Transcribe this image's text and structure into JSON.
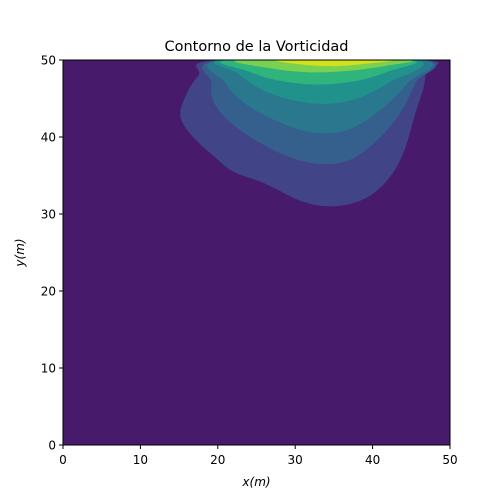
{
  "chart_data": {
    "type": "contour",
    "title": "Contorno de la Vorticidad",
    "xlabel": "x(m)",
    "ylabel": "y(m)",
    "xlim": [
      0,
      50
    ],
    "ylim": [
      0,
      50
    ],
    "xticks": [
      "0",
      "10",
      "20",
      "30",
      "40",
      "50"
    ],
    "yticks": [
      "0",
      "10",
      "20",
      "30",
      "40",
      "50"
    ],
    "grid": false,
    "legend": "none",
    "background_level_color": "#481a6c",
    "levels": [
      {
        "level": 1,
        "color": "#414487",
        "polygon": [
          [
            20,
            50
          ],
          [
            17.5,
            48
          ],
          [
            15.7,
            45
          ],
          [
            15.2,
            42.5
          ],
          [
            16.8,
            40
          ],
          [
            19.5,
            37.5
          ],
          [
            22,
            35.5
          ],
          [
            26,
            34
          ],
          [
            31,
            31.6
          ],
          [
            35,
            31
          ],
          [
            39,
            32
          ],
          [
            42,
            34.5
          ],
          [
            44,
            38
          ],
          [
            45.5,
            43
          ],
          [
            46.6,
            46.5
          ],
          [
            46.8,
            48.5
          ],
          [
            46.5,
            50
          ]
        ]
      },
      {
        "level": 2,
        "color": "#355f8d",
        "polygon": [
          [
            20.3,
            50
          ],
          [
            19.2,
            47
          ],
          [
            19.5,
            44.5
          ],
          [
            21.5,
            42
          ],
          [
            25,
            39.5
          ],
          [
            29,
            37.5
          ],
          [
            33,
            36.5
          ],
          [
            37,
            37
          ],
          [
            40.5,
            39.5
          ],
          [
            43.5,
            43
          ],
          [
            45.5,
            47
          ],
          [
            46.5,
            50
          ]
        ]
      },
      {
        "level": 3,
        "color": "#2a788e",
        "polygon": [
          [
            20.5,
            50
          ],
          [
            21,
            47
          ],
          [
            24,
            44
          ],
          [
            29,
            41.5
          ],
          [
            33,
            40.5
          ],
          [
            37,
            41
          ],
          [
            41,
            43.5
          ],
          [
            44.5,
            47
          ],
          [
            46.3,
            50
          ]
        ]
      },
      {
        "level": 4,
        "color": "#21918c",
        "polygon": [
          [
            21,
            50
          ],
          [
            22.5,
            48.3
          ],
          [
            26,
            46
          ],
          [
            30,
            44.7
          ],
          [
            34,
            44.3
          ],
          [
            38,
            45
          ],
          [
            42,
            47
          ],
          [
            45.5,
            50
          ]
        ]
      },
      {
        "level": 5,
        "color": "#2fb47c",
        "polygon": [
          [
            21.5,
            50
          ],
          [
            24,
            48.5
          ],
          [
            28,
            47.3
          ],
          [
            33,
            46.8
          ],
          [
            38,
            47.3
          ],
          [
            42,
            48.5
          ],
          [
            44.5,
            50
          ]
        ]
      },
      {
        "level": 6,
        "color": "#7ad151",
        "polygon": [
          [
            23,
            50
          ],
          [
            27,
            48.9
          ],
          [
            32,
            48.4
          ],
          [
            37,
            48.6
          ],
          [
            42,
            49.3
          ],
          [
            44,
            50
          ]
        ]
      },
      {
        "level": 7,
        "color": "#d2e21b",
        "polygon": [
          [
            28,
            50
          ],
          [
            31,
            49.4
          ],
          [
            35,
            49.2
          ],
          [
            39,
            49.5
          ],
          [
            42,
            50
          ]
        ]
      }
    ]
  }
}
